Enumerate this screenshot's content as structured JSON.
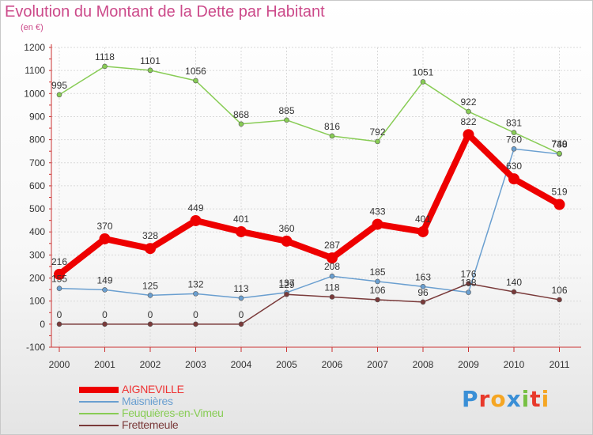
{
  "title": "Evolution du Montant de la Dette par Habitant",
  "subtitle": "(en €)",
  "brand": {
    "letters": [
      "P",
      "r",
      "o",
      "x",
      "i",
      "t",
      "i"
    ],
    "colors": [
      "#3a8fd6",
      "#e8392b",
      "#f5a623",
      "#3a8fd6",
      "#77c043",
      "#e8392b",
      "#f5a623"
    ]
  },
  "chart_data": {
    "type": "line",
    "title": "Evolution du Montant de la Dette par Habitant",
    "ylabel": "(en €)",
    "xlabel": "",
    "ylim": [
      -100,
      1200
    ],
    "yticks": [
      -100,
      0,
      100,
      200,
      300,
      400,
      500,
      600,
      700,
      800,
      900,
      1000,
      1100,
      1200
    ],
    "x": [
      "2000",
      "2001",
      "2002",
      "2003",
      "2004",
      "2005",
      "2006",
      "2007",
      "2008",
      "2009",
      "2010",
      "2011"
    ],
    "grid": true,
    "legend_position": "bottom-left",
    "series": [
      {
        "name": "AIGNEVILLE",
        "color": "#ee0000",
        "emphasis": true,
        "values": [
          216,
          370,
          328,
          449,
          401,
          360,
          287,
          433,
          401,
          822,
          630,
          519
        ],
        "labels": [
          "216",
          "370",
          "328",
          "449",
          "401",
          "360",
          "287",
          "433",
          "401",
          "822",
          "630",
          "519"
        ]
      },
      {
        "name": "Maisnières",
        "color": "#6a9fd0",
        "emphasis": false,
        "values": [
          155,
          149,
          125,
          132,
          113,
          137,
          208,
          185,
          163,
          138,
          760,
          738
        ],
        "labels": [
          "155",
          "149",
          "125",
          "132",
          "113",
          "137",
          "208",
          "185",
          "163",
          "138",
          "760",
          "738"
        ]
      },
      {
        "name": "Feuquières-en-Vimeu",
        "color": "#88cc55",
        "emphasis": false,
        "values": [
          995,
          1118,
          1101,
          1056,
          868,
          885,
          816,
          792,
          1051,
          922,
          831,
          740
        ],
        "labels": [
          "995",
          "1118",
          "1101",
          "1056",
          "868",
          "885",
          "816",
          "792",
          "1051",
          "922",
          "831",
          "740"
        ]
      },
      {
        "name": "Frettemeule",
        "color": "#7a3a3a",
        "emphasis": false,
        "values": [
          0,
          0,
          0,
          0,
          0,
          129,
          118,
          106,
          96,
          176,
          140,
          106
        ],
        "labels": [
          "0",
          "0",
          "0",
          "0",
          "0",
          "129",
          "118",
          "106",
          "96",
          "176",
          "140",
          "106"
        ]
      }
    ]
  }
}
